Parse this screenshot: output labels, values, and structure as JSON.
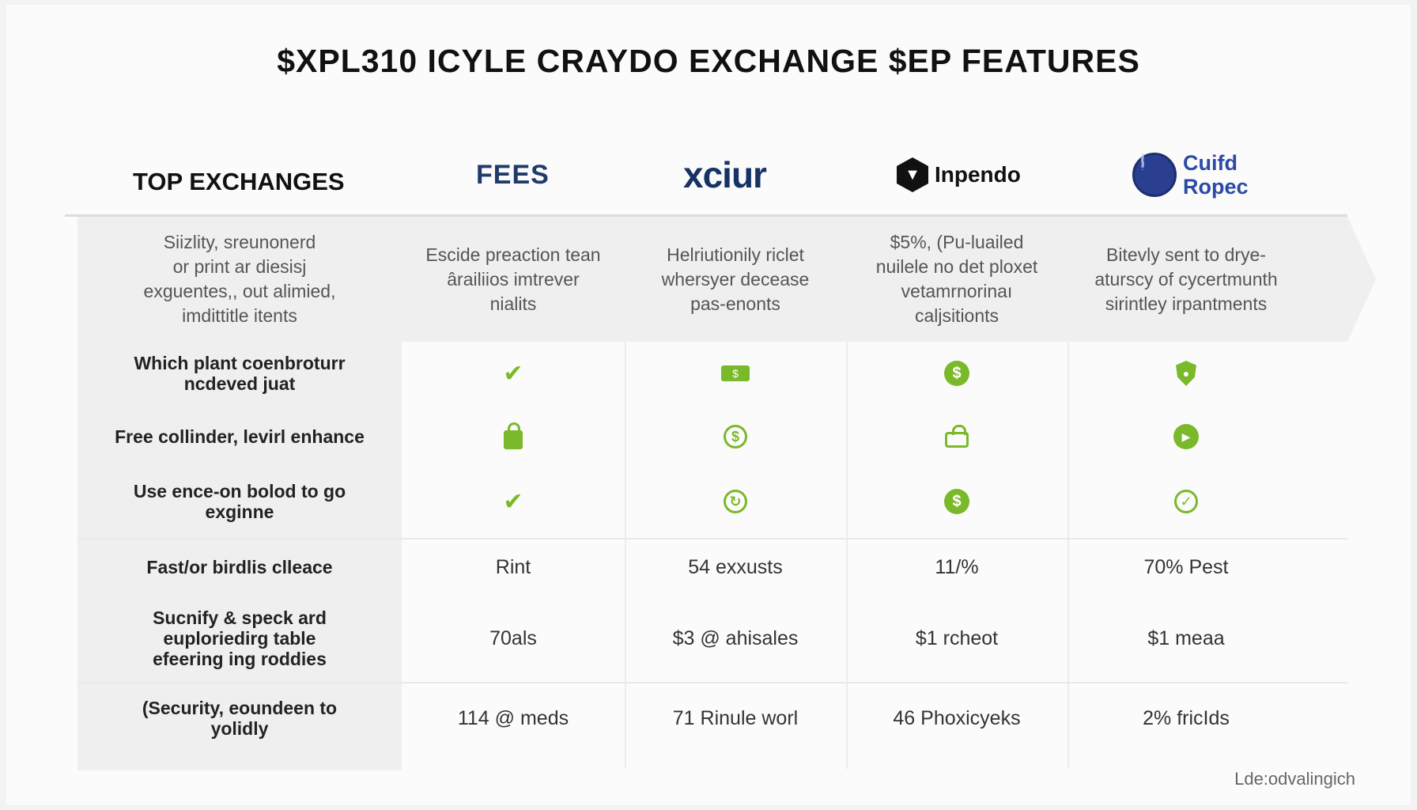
{
  "title": "$XPL310 ICYLE CRAYDO EXCHANGE $EP FEATURES",
  "header": {
    "top_exchanges": "TOP EXCHANGES",
    "brands": [
      "FEES",
      "xciur",
      "Inpendo",
      "Cuifd Ropec"
    ],
    "brand_cuifa_lines": [
      "Cuifd",
      "Ropec"
    ]
  },
  "descriptions": {
    "label": [
      "Siizlity, sreunonerd",
      "or print ar diesisj",
      "exguentes,, out alimied,",
      "imdittitle itents"
    ],
    "col1": [
      "Escide preaction tean",
      "ârailiios imtrever",
      "nialits"
    ],
    "col2": [
      "Helriutionily riclet",
      "whersyer decease",
      "pas-enonts"
    ],
    "col3": [
      "$5%, (Pu-luailed",
      "nuilele no det ploxet",
      "vetamrnorinaı",
      "caljsitionts"
    ],
    "col4": [
      "Bitevly sent to drye-",
      "aturscy of cycertmunth",
      "sirintley irpantments"
    ]
  },
  "icon_rows": [
    {
      "label": [
        "Which plant coenbroturr",
        "ncdeved juat"
      ],
      "icons": [
        "check-leaf-icon",
        "money-icon",
        "dollar-coin-icon",
        "shield-icon"
      ]
    },
    {
      "label": [
        "Free collinder, levirl enhance"
      ],
      "icons": [
        "lock-icon",
        "dollar-outline-icon",
        "lock-outline-icon",
        "play-coin-icon"
      ]
    },
    {
      "label": [
        "Use ence-on bolod to go",
        "exginne"
      ],
      "icons": [
        "check-leaf-icon",
        "refresh-dollar-icon",
        "dollar-coin-icon",
        "check-circle-icon"
      ]
    }
  ],
  "value_rows": [
    {
      "label": [
        "Fast/or birdlis clleace"
      ],
      "values": [
        "Rint",
        "54 exxusts",
        "11/%",
        "70% Pest"
      ]
    },
    {
      "label": [
        "Sucnify & speck ard",
        "euploriedirg table",
        "efeering ing roddies"
      ],
      "values": [
        "70als",
        "$3 @ ahisales",
        "$1 rcheot",
        "$1 meaa"
      ]
    },
    {
      "label": [
        "(Security, eoundeen to",
        "yolidly"
      ],
      "values": [
        "114 @ meds",
        "71 Rinule worl",
        "46 Phoxicyeks",
        "2% fricIds"
      ]
    }
  ],
  "footer": "Lde:odvalingich",
  "colors": {
    "accent": "#7ab929",
    "brand_navy": "#1f3a6b",
    "brand_blue": "#2a4aa6"
  }
}
